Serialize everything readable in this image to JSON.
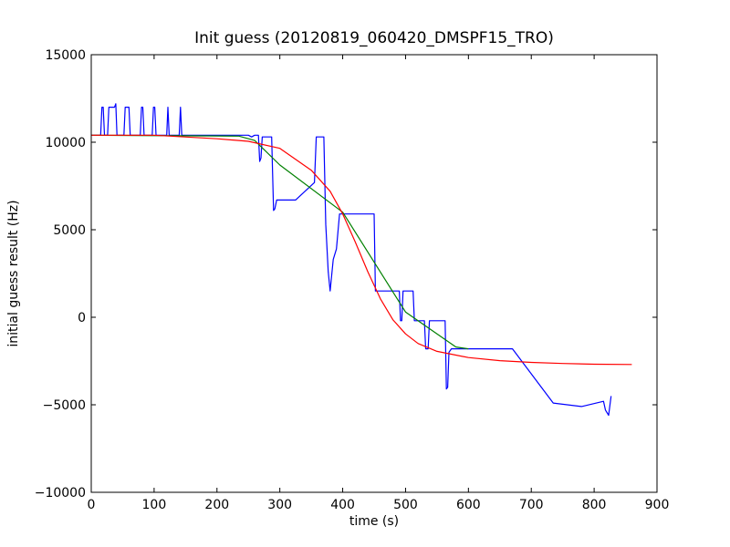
{
  "chart_data": {
    "type": "line",
    "title": "Init guess (20120819_060420_DMSPF15_TRO)",
    "xlabel": "time (s)",
    "ylabel": "initial guess result (Hz)",
    "xlim": [
      0,
      900
    ],
    "ylim": [
      -10000,
      15000
    ],
    "xticks": [
      0,
      100,
      200,
      300,
      400,
      500,
      600,
      700,
      800,
      900
    ],
    "yticks": [
      -10000,
      -5000,
      0,
      5000,
      10000,
      15000
    ],
    "grid": false,
    "legend": "none",
    "series": [
      {
        "color": "#0000ff",
        "points": [
          [
            0,
            10400
          ],
          [
            15,
            10400
          ],
          [
            17,
            12000
          ],
          [
            19,
            12000
          ],
          [
            21,
            10400
          ],
          [
            26,
            10400
          ],
          [
            28,
            12000
          ],
          [
            37,
            12000
          ],
          [
            39,
            12200
          ],
          [
            41,
            10400
          ],
          [
            52,
            10400
          ],
          [
            54,
            12000
          ],
          [
            60,
            12000
          ],
          [
            62,
            10400
          ],
          [
            78,
            10400
          ],
          [
            80,
            12000
          ],
          [
            82,
            12000
          ],
          [
            84,
            10400
          ],
          [
            97,
            10400
          ],
          [
            99,
            12000
          ],
          [
            101,
            12000
          ],
          [
            103,
            10400
          ],
          [
            120,
            10400
          ],
          [
            122,
            12000
          ],
          [
            124,
            10400
          ],
          [
            140,
            10400
          ],
          [
            142,
            12000
          ],
          [
            144,
            10400
          ],
          [
            250,
            10400
          ],
          [
            255,
            10300
          ],
          [
            260,
            10400
          ],
          [
            266,
            10400
          ],
          [
            268,
            8900
          ],
          [
            270,
            9100
          ],
          [
            272,
            10300
          ],
          [
            287,
            10300
          ],
          [
            290,
            6100
          ],
          [
            292,
            6200
          ],
          [
            295,
            6700
          ],
          [
            325,
            6700
          ],
          [
            355,
            7700
          ],
          [
            358,
            10300
          ],
          [
            370,
            10300
          ],
          [
            373,
            5300
          ],
          [
            377,
            2600
          ],
          [
            380,
            1500
          ],
          [
            385,
            3300
          ],
          [
            390,
            3900
          ],
          [
            395,
            5900
          ],
          [
            450,
            5900
          ],
          [
            452,
            1500
          ],
          [
            490,
            1500
          ],
          [
            492,
            -200
          ],
          [
            494,
            -200
          ],
          [
            496,
            1500
          ],
          [
            512,
            1500
          ],
          [
            514,
            -200
          ],
          [
            530,
            -200
          ],
          [
            532,
            -1800
          ],
          [
            536,
            -1800
          ],
          [
            538,
            -200
          ],
          [
            563,
            -200
          ],
          [
            565,
            -4100
          ],
          [
            567,
            -4000
          ],
          [
            569,
            -2000
          ],
          [
            573,
            -1800
          ],
          [
            670,
            -1800
          ],
          [
            735,
            -4900
          ],
          [
            780,
            -5100
          ],
          [
            815,
            -4800
          ],
          [
            818,
            -5300
          ],
          [
            823,
            -5600
          ],
          [
            827,
            -4500
          ]
        ]
      },
      {
        "color": "#008000",
        "points": [
          [
            0,
            10400
          ],
          [
            235,
            10350
          ],
          [
            260,
            10100
          ],
          [
            300,
            8700
          ],
          [
            400,
            6000
          ],
          [
            500,
            300
          ],
          [
            580,
            -1700
          ],
          [
            600,
            -1800
          ]
        ]
      },
      {
        "color": "#ff0000",
        "points": [
          [
            0,
            10400
          ],
          [
            100,
            10400
          ],
          [
            200,
            10200
          ],
          [
            250,
            10050
          ],
          [
            300,
            9650
          ],
          [
            350,
            8400
          ],
          [
            380,
            7200
          ],
          [
            400,
            5900
          ],
          [
            420,
            4300
          ],
          [
            440,
            2600
          ],
          [
            460,
            1050
          ],
          [
            480,
            -150
          ],
          [
            500,
            -950
          ],
          [
            520,
            -1500
          ],
          [
            550,
            -1950
          ],
          [
            600,
            -2300
          ],
          [
            650,
            -2480
          ],
          [
            700,
            -2580
          ],
          [
            750,
            -2640
          ],
          [
            800,
            -2680
          ],
          [
            860,
            -2700
          ]
        ]
      }
    ]
  }
}
